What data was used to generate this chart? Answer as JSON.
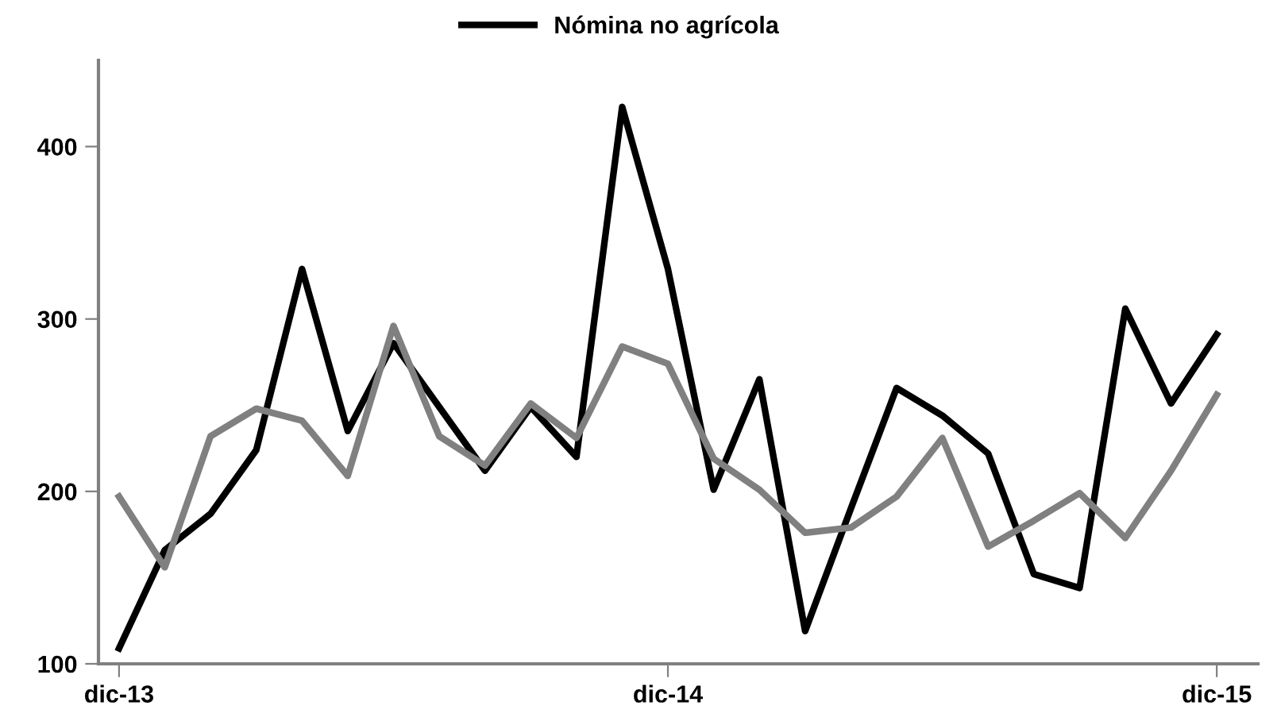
{
  "chart_data": {
    "type": "line",
    "categories": [
      "dic-13",
      null,
      null,
      null,
      null,
      null,
      null,
      null,
      null,
      null,
      null,
      null,
      "dic-14",
      null,
      null,
      null,
      null,
      null,
      null,
      null,
      null,
      null,
      null,
      null,
      "dic-15"
    ],
    "series": [
      {
        "name": "Nómina no agrícola",
        "color": "#000000",
        "values": [
          109,
          166,
          187,
          224,
          329,
          235,
          286,
          249,
          212,
          249,
          220,
          423,
          329,
          201,
          265,
          119,
          190,
          260,
          244,
          222,
          152,
          144,
          306,
          251,
          291
        ]
      },
      {
        "color": "#808080",
        "values": [
          197,
          156,
          232,
          248,
          241,
          209,
          296,
          232,
          215,
          251,
          231,
          284,
          274,
          219,
          201,
          176,
          179,
          197,
          231,
          168,
          183,
          199,
          173,
          212,
          256
        ]
      }
    ],
    "ylim": [
      100,
      450
    ],
    "yticks": [
      100,
      200,
      300,
      400
    ],
    "grid": false,
    "legend": "top",
    "marker": "none",
    "line_style": "solid"
  }
}
